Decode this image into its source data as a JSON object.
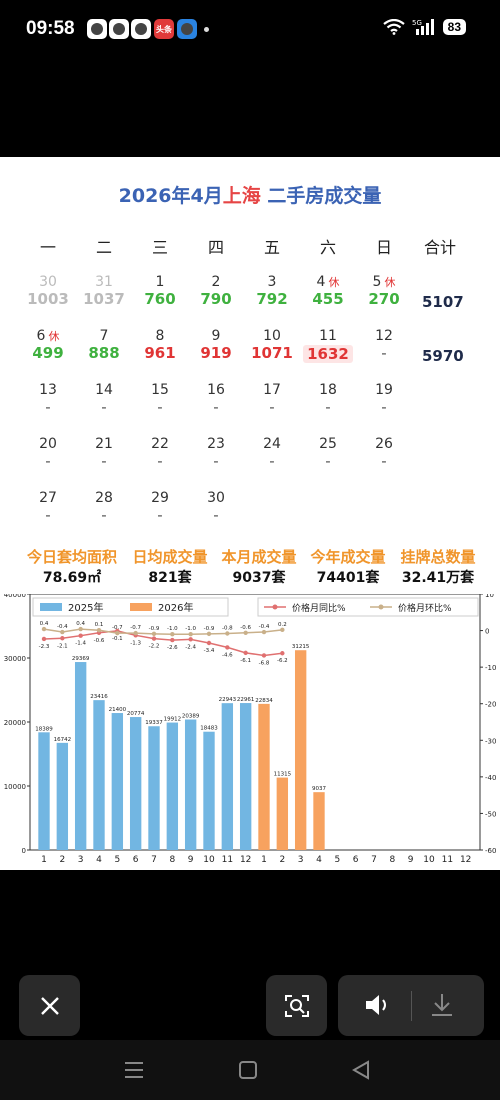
{
  "status": {
    "time": "09:58",
    "battery": "83",
    "network": "5G"
  },
  "notifications": [
    {
      "icon": "qq-icon",
      "bg": "#ffffff",
      "label": ""
    },
    {
      "icon": "avatar-icon",
      "bg": "#ffffff",
      "label": ""
    },
    {
      "icon": "app-icon",
      "bg": "#ffffff",
      "label": ""
    },
    {
      "icon": "toutiao-icon",
      "bg": "#e03a3a",
      "label": "头条"
    },
    {
      "icon": "app-blue-icon",
      "bg": "#2a83e0",
      "label": ""
    }
  ],
  "calendar": {
    "title_prefix": "2026年4月",
    "title_city": "上海",
    "title_suffix": " 二手房成交量",
    "headers": [
      "一",
      "二",
      "三",
      "四",
      "五",
      "六",
      "日",
      "合计"
    ],
    "weeks": [
      {
        "days": [
          {
            "d": "30",
            "v": "1003",
            "c": "grey"
          },
          {
            "d": "31",
            "v": "1037",
            "c": "grey"
          },
          {
            "d": "1",
            "v": "760",
            "c": "green"
          },
          {
            "d": "2",
            "v": "790",
            "c": "green"
          },
          {
            "d": "3",
            "v": "792",
            "c": "green"
          },
          {
            "d": "4",
            "h": "休",
            "v": "455",
            "c": "green"
          },
          {
            "d": "5",
            "h": "休",
            "v": "270",
            "c": "green"
          }
        ],
        "total": "5107"
      },
      {
        "days": [
          {
            "d": "6",
            "h": "休",
            "v": "499",
            "c": "green"
          },
          {
            "d": "7",
            "v": "888",
            "c": "green"
          },
          {
            "d": "8",
            "v": "961",
            "c": "red"
          },
          {
            "d": "9",
            "v": "919",
            "c": "red"
          },
          {
            "d": "10",
            "v": "1071",
            "c": "red"
          },
          {
            "d": "11",
            "v": "1632",
            "c": "red hl"
          },
          {
            "d": "12",
            "v": "-",
            "c": "dash"
          }
        ],
        "total": "5970"
      },
      {
        "days": [
          {
            "d": "13",
            "v": "-",
            "c": "dash"
          },
          {
            "d": "14",
            "v": "-",
            "c": "dash"
          },
          {
            "d": "15",
            "v": "-",
            "c": "dash"
          },
          {
            "d": "16",
            "v": "-",
            "c": "dash"
          },
          {
            "d": "17",
            "v": "-",
            "c": "dash"
          },
          {
            "d": "18",
            "v": "-",
            "c": "dash"
          },
          {
            "d": "19",
            "v": "-",
            "c": "dash"
          }
        ],
        "total": ""
      },
      {
        "days": [
          {
            "d": "20",
            "v": "-",
            "c": "dash"
          },
          {
            "d": "21",
            "v": "-",
            "c": "dash"
          },
          {
            "d": "22",
            "v": "-",
            "c": "dash"
          },
          {
            "d": "23",
            "v": "-",
            "c": "dash"
          },
          {
            "d": "24",
            "v": "-",
            "c": "dash"
          },
          {
            "d": "25",
            "v": "-",
            "c": "dash"
          },
          {
            "d": "26",
            "v": "-",
            "c": "dash"
          }
        ],
        "total": ""
      },
      {
        "days": [
          {
            "d": "27",
            "v": "-",
            "c": "dash"
          },
          {
            "d": "28",
            "v": "-",
            "c": "dash"
          },
          {
            "d": "29",
            "v": "-",
            "c": "dash"
          },
          {
            "d": "30",
            "v": "-",
            "c": "dash"
          }
        ],
        "total": ""
      }
    ]
  },
  "stats": [
    {
      "label": "今日套均面积",
      "value": "78.69㎡"
    },
    {
      "label": "日均成交量",
      "value": "821套"
    },
    {
      "label": "本月成交量",
      "value": "9037套"
    },
    {
      "label": "今年成交量",
      "value": "74401套"
    },
    {
      "label": "挂牌总数量",
      "value": "32.41万套"
    }
  ],
  "chart_data": {
    "type": "bar",
    "categories": [
      "1",
      "2",
      "3",
      "4",
      "5",
      "6",
      "7",
      "8",
      "9",
      "10",
      "11",
      "12",
      "1",
      "2",
      "3",
      "4",
      "5",
      "6",
      "7",
      "8",
      "9",
      "10",
      "11",
      "12"
    ],
    "series": [
      {
        "name": "2025年",
        "color": "#72b6e2",
        "values": [
          18389,
          16742,
          29369,
          23416,
          21400,
          20774,
          19337,
          19912,
          20389,
          18483,
          22943,
          22961,
          null,
          null,
          null,
          null,
          null,
          null,
          null,
          null,
          null,
          null,
          null,
          null
        ]
      },
      {
        "name": "2026年",
        "color": "#f7a25f",
        "values": [
          null,
          null,
          null,
          null,
          null,
          null,
          null,
          null,
          null,
          null,
          null,
          null,
          22834,
          11315,
          31215,
          9037,
          null,
          null,
          null,
          null,
          null,
          null,
          null,
          null
        ]
      }
    ],
    "bar_labels": [
      "18389",
      "16742",
      "29369",
      "23416",
      "21400",
      "20774",
      "19337",
      "19912",
      "20389",
      "18483",
      "22943",
      "22961",
      "22834",
      "11315",
      "31215",
      "9037"
    ],
    "lines": [
      {
        "name": "价格月同比%",
        "color": "#e07070",
        "values": [
          -2.3,
          -2.1,
          -1.4,
          -0.6,
          -0.1,
          -1.3,
          -2.2,
          -2.6,
          -2.4,
          -3.4,
          -4.6,
          -6.1,
          -6.8,
          -6.2
        ],
        "labels": [
          "-2.3",
          "-2.1",
          "-1.4",
          "-0.6",
          "-0.1",
          "-1.3",
          "-2.2",
          "-2.6",
          "-2.4",
          "-3.4",
          "-4.6",
          "-6.1",
          "-6.8",
          "-6.2"
        ]
      },
      {
        "name": "价格月环比%",
        "color": "#c9b08a",
        "values": [
          0.4,
          -0.4,
          0.4,
          0.1,
          -0.7,
          -0.7,
          -0.9,
          -1.0,
          -1.0,
          -0.9,
          -0.8,
          -0.6,
          -0.4,
          0.2
        ],
        "labels": [
          "0.4",
          "-0.4",
          "0.4",
          "0.1",
          "-0.7",
          "-0.7",
          "-0.9",
          "-1.0",
          "-1.0",
          "-0.9",
          "-0.8",
          "-0.6",
          "-0.4",
          "0.2"
        ]
      }
    ],
    "ylim_left": [
      0,
      40000
    ],
    "yticks_left": [
      "0",
      "10000",
      "20000",
      "30000",
      "40000"
    ],
    "ylim_right": [
      -60,
      10
    ],
    "yticks_right": [
      "10",
      "0",
      "-10",
      "-20",
      "-30",
      "-40",
      "-50",
      "-60"
    ],
    "legend": [
      "2025年",
      "2026年",
      "价格月同比%",
      "价格月环比%"
    ]
  },
  "bottom": {
    "close": "close-icon",
    "scan": "scan-icon",
    "volume": "volume-icon",
    "download": "download-icon"
  }
}
